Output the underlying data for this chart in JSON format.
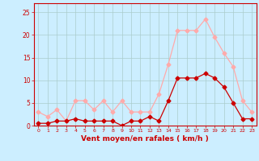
{
  "hours": [
    0,
    1,
    2,
    3,
    4,
    5,
    6,
    7,
    8,
    9,
    10,
    11,
    12,
    13,
    14,
    15,
    16,
    17,
    18,
    19,
    20,
    21,
    22,
    23
  ],
  "wind_avg": [
    0.5,
    0.5,
    1.0,
    1.0,
    1.5,
    1.0,
    1.0,
    1.0,
    1.0,
    0.0,
    1.0,
    1.0,
    2.0,
    1.0,
    5.5,
    10.5,
    10.5,
    10.5,
    11.5,
    10.5,
    8.5,
    5.0,
    1.5,
    1.5
  ],
  "wind_gust": [
    3.0,
    2.0,
    3.5,
    1.0,
    5.5,
    5.5,
    3.5,
    5.5,
    3.0,
    5.5,
    3.0,
    3.0,
    3.0,
    7.0,
    13.5,
    21.0,
    21.0,
    21.0,
    23.5,
    19.5,
    16.0,
    13.0,
    5.5,
    3.0
  ],
  "avg_color": "#cc0000",
  "gust_color": "#ffaaaa",
  "bg_color": "#cceeff",
  "grid_color": "#aacccc",
  "axis_color": "#cc0000",
  "tick_color": "#cc0000",
  "label_color": "#cc0000",
  "ylabel_ticks": [
    0,
    5,
    10,
    15,
    20,
    25
  ],
  "ylim": [
    0,
    27
  ],
  "xlabel": "Vent moyen/en rafales ( km/h )",
  "marker": "D",
  "marker_size": 2.5,
  "line_width": 0.9
}
